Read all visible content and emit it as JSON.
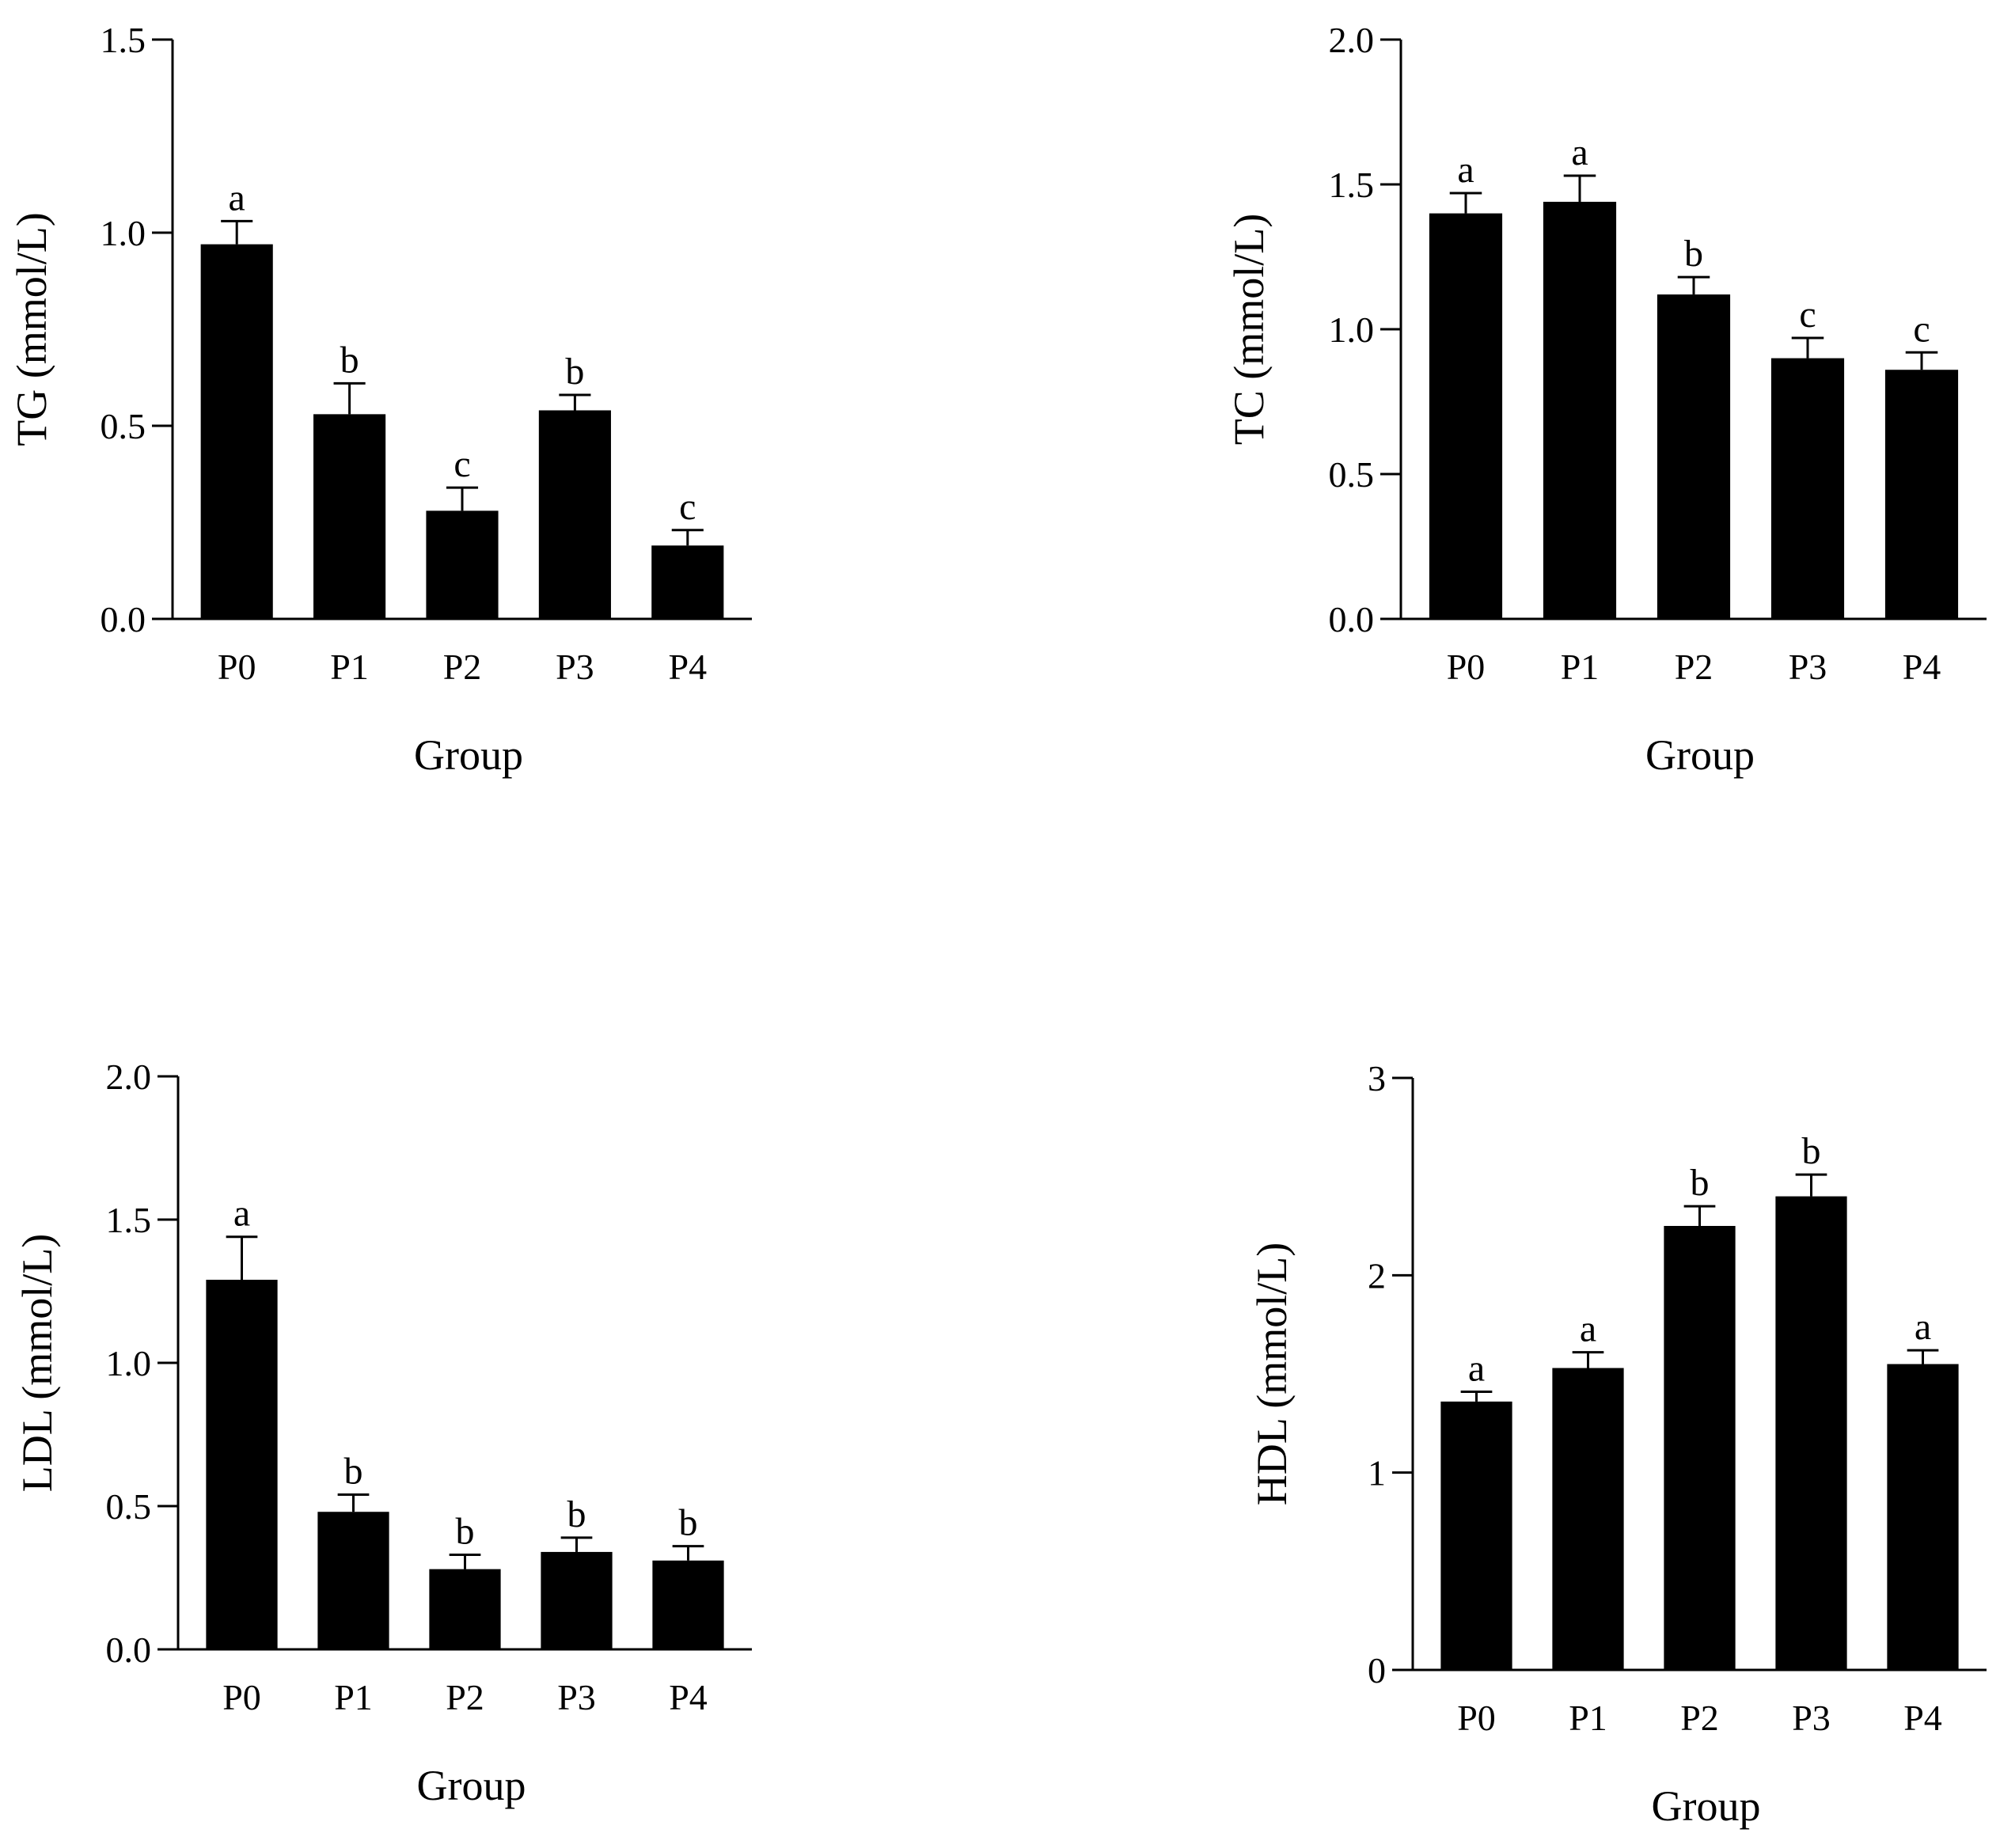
{
  "chart_data": [
    {
      "type": "bar",
      "title": "",
      "xlabel": "Group",
      "ylabel": "TG (mmol/L)",
      "categories": [
        "P0",
        "P1",
        "P2",
        "P3",
        "P4"
      ],
      "values": [
        0.97,
        0.53,
        0.28,
        0.54,
        0.19
      ],
      "errors": [
        0.06,
        0.08,
        0.06,
        0.04,
        0.04
      ],
      "significance": [
        "a",
        "b",
        "c",
        "b",
        "c"
      ],
      "ylim": [
        0,
        1.5
      ],
      "yticks": [
        0.0,
        0.5,
        1.0,
        1.5
      ],
      "ytick_labels": [
        "0.0",
        "0.5",
        "1.0",
        "1.5"
      ],
      "bar_color": "#000000"
    },
    {
      "type": "bar",
      "title": "",
      "xlabel": "Group",
      "ylabel": "TC (mmol/L)",
      "categories": [
        "P0",
        "P1",
        "P2",
        "P3",
        "P4"
      ],
      "values": [
        1.4,
        1.44,
        1.12,
        0.9,
        0.86
      ],
      "errors": [
        0.07,
        0.09,
        0.06,
        0.07,
        0.06
      ],
      "significance": [
        "a",
        "a",
        "b",
        "c",
        "c"
      ],
      "ylim": [
        0,
        2.0
      ],
      "yticks": [
        0.0,
        0.5,
        1.0,
        1.5,
        2.0
      ],
      "ytick_labels": [
        "0.0",
        "0.5",
        "1.0",
        "1.5",
        "2.0"
      ],
      "bar_color": "#000000"
    },
    {
      "type": "bar",
      "title": "",
      "xlabel": "Group",
      "ylabel": "LDL (mmol/L)",
      "categories": [
        "P0",
        "P1",
        "P2",
        "P3",
        "P4"
      ],
      "values": [
        1.29,
        0.48,
        0.28,
        0.34,
        0.31
      ],
      "errors": [
        0.15,
        0.06,
        0.05,
        0.05,
        0.05
      ],
      "significance": [
        "a",
        "b",
        "b",
        "b",
        "b"
      ],
      "ylim": [
        0,
        2.0
      ],
      "yticks": [
        0.0,
        0.5,
        1.0,
        1.5,
        2.0
      ],
      "ytick_labels": [
        "0.0",
        "0.5",
        "1.0",
        "1.5",
        "2.0"
      ],
      "bar_color": "#000000"
    },
    {
      "type": "bar",
      "title": "",
      "xlabel": "Group",
      "ylabel": "HDL (mmol/L)",
      "categories": [
        "P0",
        "P1",
        "P2",
        "P3",
        "P4"
      ],
      "values": [
        1.36,
        1.53,
        2.25,
        2.4,
        1.55
      ],
      "errors": [
        0.05,
        0.08,
        0.1,
        0.11,
        0.07
      ],
      "significance": [
        "a",
        "a",
        "b",
        "b",
        "a"
      ],
      "ylim": [
        0,
        3
      ],
      "yticks": [
        0,
        1,
        2,
        3
      ],
      "ytick_labels": [
        "0",
        "1",
        "2",
        "3"
      ],
      "bar_color": "#000000"
    }
  ]
}
